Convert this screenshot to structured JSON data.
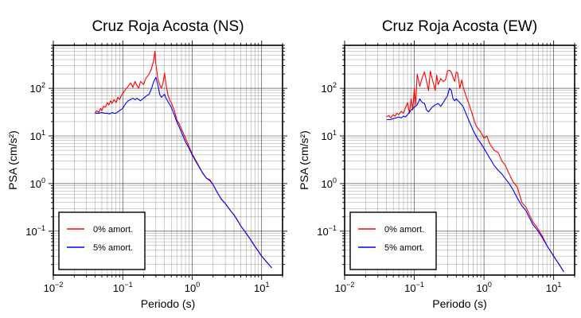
{
  "chart_data": [
    {
      "type": "line",
      "title": "Cruz Roja Acosta (NS)",
      "xlabel": "Periodo (s)",
      "ylabel": "PSA (cm/s²)",
      "xscale": "log",
      "yscale": "log",
      "xlim": [
        0.01,
        20
      ],
      "ylim": [
        0.012,
        800
      ],
      "grid": true,
      "legend_position": "bottom-left",
      "x_ticks": [
        {
          "value": 0.01,
          "base": "10",
          "exp": "−2"
        },
        {
          "value": 0.1,
          "base": "10",
          "exp": "−1"
        },
        {
          "value": 1,
          "base": "10",
          "exp": "0"
        },
        {
          "value": 10,
          "base": "10",
          "exp": "1"
        }
      ],
      "y_ticks": [
        {
          "value": 0.1,
          "base": "10",
          "exp": "−1"
        },
        {
          "value": 1,
          "base": "10",
          "exp": "0"
        },
        {
          "value": 10,
          "base": "10",
          "exp": "1"
        },
        {
          "value": 100,
          "base": "10",
          "exp": "2"
        }
      ],
      "series": [
        {
          "name": "0% amort.",
          "color": "#ff0000",
          "x": [
            0.04,
            0.042,
            0.045,
            0.048,
            0.05,
            0.053,
            0.056,
            0.06,
            0.063,
            0.067,
            0.07,
            0.075,
            0.08,
            0.085,
            0.09,
            0.095,
            0.1,
            0.11,
            0.12,
            0.13,
            0.14,
            0.15,
            0.16,
            0.17,
            0.18,
            0.19,
            0.2,
            0.21,
            0.22,
            0.24,
            0.26,
            0.28,
            0.29,
            0.3,
            0.32,
            0.34,
            0.36,
            0.38,
            0.4,
            0.42,
            0.45,
            0.48,
            0.5,
            0.55,
            0.6,
            0.65,
            0.7,
            0.8,
            0.9,
            1.0,
            1.2,
            1.4,
            1.6,
            1.8,
            2.0,
            2.3,
            2.6,
            3.0,
            3.5,
            4.0,
            4.5,
            5.0,
            6.0,
            7.0,
            8.0,
            9.0,
            10.0,
            12.0,
            14.0
          ],
          "y": [
            30,
            34,
            31,
            38,
            34,
            42,
            40,
            50,
            45,
            55,
            48,
            58,
            50,
            65,
            58,
            70,
            78,
            95,
            110,
            130,
            105,
            140,
            115,
            100,
            140,
            130,
            120,
            150,
            170,
            200,
            260,
            400,
            600,
            320,
            160,
            120,
            100,
            130,
            210,
            120,
            70,
            55,
            50,
            35,
            22,
            18,
            14,
            9,
            6,
            4.2,
            2.6,
            1.7,
            1.3,
            1.2,
            0.95,
            0.65,
            0.48,
            0.38,
            0.28,
            0.22,
            0.17,
            0.13,
            0.09,
            0.065,
            0.048,
            0.038,
            0.03,
            0.022,
            0.017
          ]
        },
        {
          "name": "5% amort.",
          "color": "#0000ff",
          "x": [
            0.04,
            0.045,
            0.05,
            0.055,
            0.06,
            0.065,
            0.07,
            0.075,
            0.08,
            0.09,
            0.1,
            0.11,
            0.12,
            0.13,
            0.14,
            0.15,
            0.16,
            0.18,
            0.2,
            0.22,
            0.24,
            0.26,
            0.28,
            0.3,
            0.32,
            0.34,
            0.36,
            0.38,
            0.4,
            0.42,
            0.45,
            0.5,
            0.55,
            0.6,
            0.7,
            0.8,
            0.9,
            1.0,
            1.2,
            1.4,
            1.6,
            1.8,
            2.0,
            2.3,
            2.6,
            3.0,
            3.5,
            4.0,
            5.0,
            6.0,
            7.0,
            8.0,
            10.0,
            12.0,
            14.0
          ],
          "y": [
            30,
            30,
            31,
            30,
            30,
            29,
            31,
            30,
            30,
            34,
            38,
            48,
            55,
            58,
            62,
            58,
            62,
            55,
            62,
            70,
            75,
            100,
            140,
            170,
            120,
            75,
            65,
            70,
            75,
            62,
            52,
            40,
            28,
            20,
            12,
            7.5,
            5.5,
            4.0,
            2.5,
            1.7,
            1.3,
            1.15,
            0.95,
            0.65,
            0.48,
            0.38,
            0.28,
            0.22,
            0.13,
            0.09,
            0.065,
            0.048,
            0.03,
            0.022,
            0.017
          ]
        }
      ]
    },
    {
      "type": "line",
      "title": "Cruz Roja Acosta (EW)",
      "xlabel": "Periodo (s)",
      "ylabel": "PSA (cm/s²)",
      "xscale": "log",
      "yscale": "log",
      "xlim": [
        0.01,
        20
      ],
      "ylim": [
        0.012,
        800
      ],
      "grid": true,
      "legend_position": "bottom-left",
      "x_ticks": [
        {
          "value": 0.01,
          "base": "10",
          "exp": "−2"
        },
        {
          "value": 0.1,
          "base": "10",
          "exp": "−1"
        },
        {
          "value": 1,
          "base": "10",
          "exp": "0"
        },
        {
          "value": 10,
          "base": "10",
          "exp": "1"
        }
      ],
      "y_ticks": [
        {
          "value": 0.1,
          "base": "10",
          "exp": "−1"
        },
        {
          "value": 1,
          "base": "10",
          "exp": "0"
        },
        {
          "value": 10,
          "base": "10",
          "exp": "1"
        },
        {
          "value": 100,
          "base": "10",
          "exp": "2"
        }
      ],
      "series": [
        {
          "name": "0% amort.",
          "color": "#ff0000",
          "x": [
            0.04,
            0.043,
            0.046,
            0.05,
            0.053,
            0.056,
            0.06,
            0.065,
            0.07,
            0.075,
            0.08,
            0.085,
            0.09,
            0.095,
            0.1,
            0.105,
            0.11,
            0.12,
            0.13,
            0.14,
            0.15,
            0.16,
            0.17,
            0.18,
            0.19,
            0.2,
            0.21,
            0.22,
            0.24,
            0.26,
            0.28,
            0.3,
            0.32,
            0.34,
            0.36,
            0.38,
            0.4,
            0.42,
            0.45,
            0.48,
            0.5,
            0.55,
            0.6,
            0.65,
            0.7,
            0.75,
            0.8,
            0.9,
            1.0,
            1.1,
            1.2,
            1.4,
            1.6,
            1.8,
            2.0,
            2.3,
            2.6,
            3.0,
            3.5,
            4.0,
            5.0,
            6.0,
            7.0,
            8.0,
            10.0,
            12.0,
            14.0
          ],
          "y": [
            25,
            27,
            24,
            28,
            26,
            30,
            28,
            33,
            30,
            40,
            50,
            30,
            60,
            35,
            100,
            45,
            200,
            110,
            170,
            220,
            140,
            90,
            230,
            160,
            120,
            90,
            190,
            120,
            160,
            140,
            150,
            230,
            240,
            220,
            170,
            140,
            220,
            210,
            100,
            150,
            110,
            70,
            50,
            35,
            25,
            18,
            15,
            12,
            9,
            10,
            7,
            5,
            4.5,
            3,
            2.5,
            1.6,
            1.1,
            0.85,
            0.4,
            0.32,
            0.16,
            0.11,
            0.075,
            0.05,
            0.03,
            0.02,
            0.014
          ]
        },
        {
          "name": "5% amort.",
          "color": "#0000ff",
          "x": [
            0.04,
            0.045,
            0.05,
            0.055,
            0.06,
            0.065,
            0.07,
            0.075,
            0.08,
            0.09,
            0.1,
            0.11,
            0.12,
            0.13,
            0.14,
            0.15,
            0.16,
            0.18,
            0.2,
            0.22,
            0.24,
            0.26,
            0.28,
            0.3,
            0.32,
            0.34,
            0.36,
            0.38,
            0.4,
            0.45,
            0.5,
            0.55,
            0.6,
            0.7,
            0.8,
            0.9,
            1.0,
            1.2,
            1.4,
            1.6,
            1.8,
            2.0,
            2.3,
            2.6,
            3.0,
            3.5,
            4.0,
            5.0,
            6.0,
            7.0,
            8.0,
            10.0,
            12.0,
            14.0
          ],
          "y": [
            22,
            22,
            23,
            24,
            25,
            24,
            26,
            25,
            28,
            35,
            40,
            45,
            60,
            50,
            48,
            35,
            32,
            40,
            45,
            48,
            42,
            50,
            60,
            70,
            100,
            90,
            60,
            55,
            60,
            50,
            42,
            30,
            22,
            13,
            9,
            7,
            5.5,
            3.5,
            2.4,
            1.9,
            1.6,
            1.3,
            1.0,
            0.75,
            0.5,
            0.34,
            0.27,
            0.14,
            0.1,
            0.07,
            0.05,
            0.03,
            0.02,
            0.014
          ]
        }
      ]
    }
  ]
}
